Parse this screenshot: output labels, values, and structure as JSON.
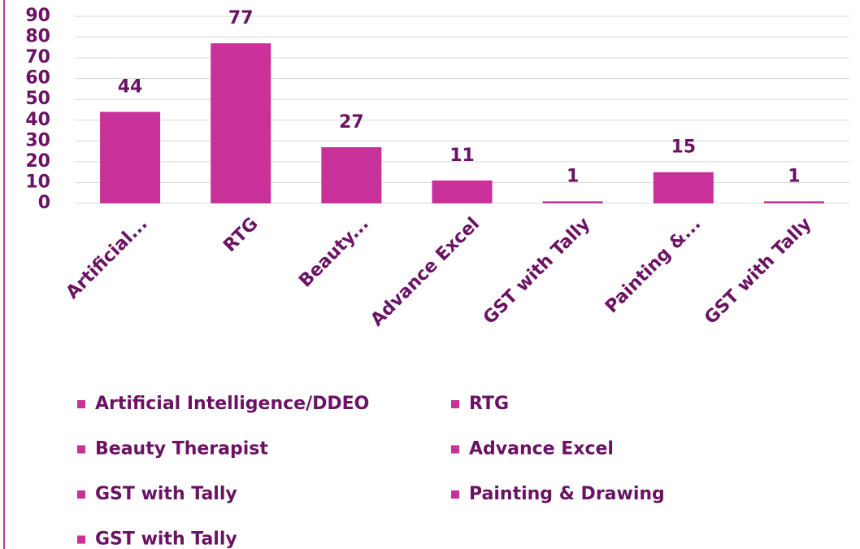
{
  "chart_data": {
    "type": "bar",
    "categories": [
      "Artificial...",
      "RTG",
      "Beauty...",
      "Advance Excel",
      "GST with Tally",
      "Painting &...",
      "GST with Tally"
    ],
    "values": [
      44,
      77,
      27,
      11,
      1,
      15,
      1
    ],
    "color": "#c8309a",
    "legend": [
      "Artificial Intelligence/DDEO",
      "RTG",
      "Beauty Therapist",
      "Advance Excel",
      "GST with Tally",
      "Painting & Drawing",
      "GST with Tally"
    ],
    "ylim": [
      0,
      90
    ],
    "yticks": [
      0,
      10,
      20,
      30,
      40,
      50,
      60,
      70,
      80,
      90
    ],
    "grid": true
  }
}
